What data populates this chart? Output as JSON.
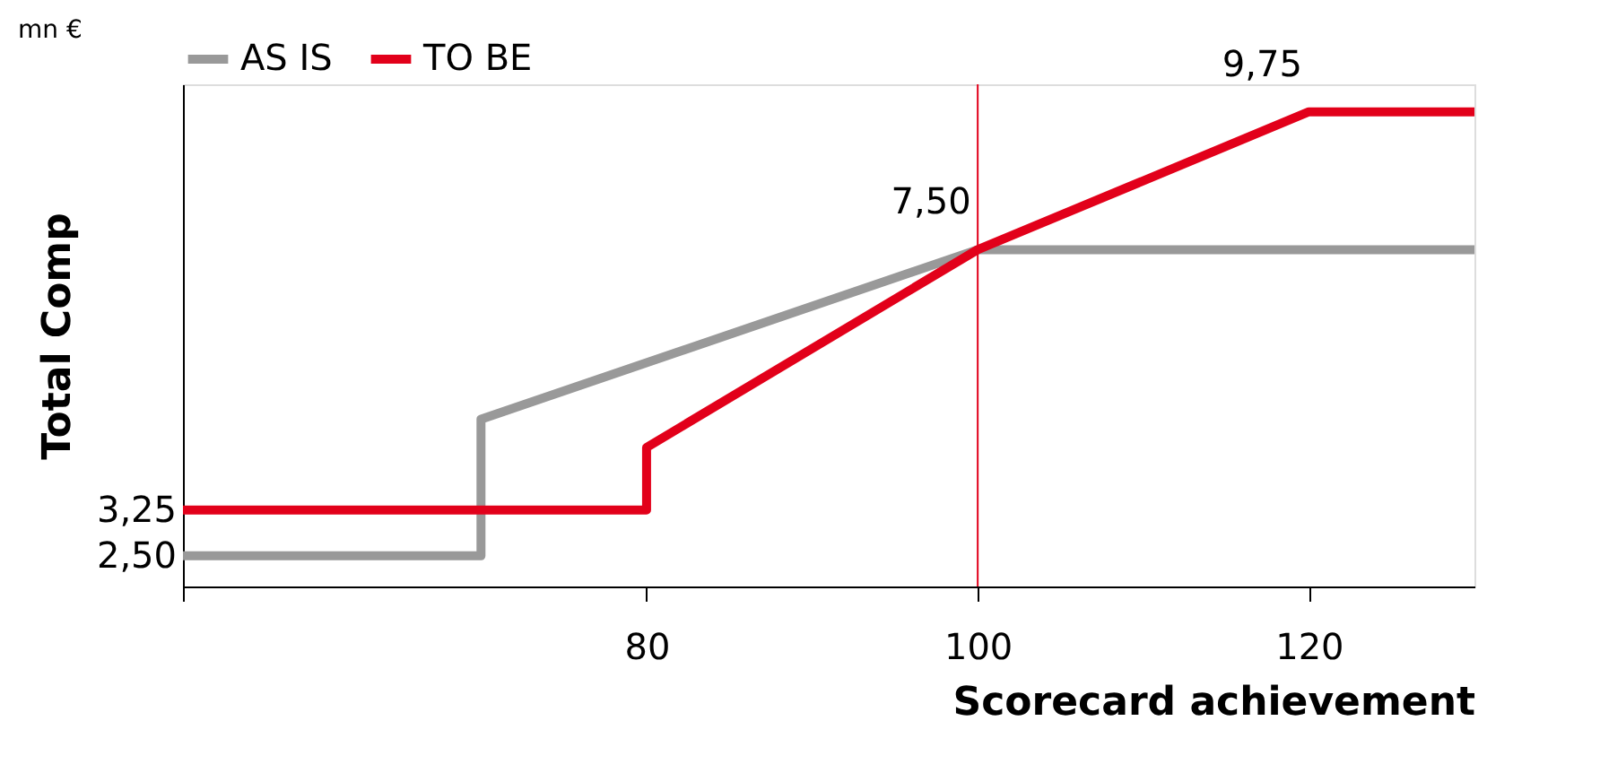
{
  "chart_data": {
    "type": "line",
    "xlabel": "Scorecard achievement",
    "ylabel": "Total Comp",
    "series": [
      {
        "name": "AS IS",
        "color": "#999999",
        "x": [
          52,
          70,
          70,
          100,
          130
        ],
        "values": [
          2.5,
          2.5,
          4.73,
          7.5,
          7.5
        ]
      },
      {
        "name": "TO BE",
        "color": "#e2001a",
        "x": [
          52,
          80,
          80,
          100,
          120,
          130
        ],
        "values": [
          3.25,
          3.25,
          4.27,
          7.5,
          9.75,
          9.75
        ]
      }
    ],
    "xlim": [
      52,
      130
    ],
    "xticks": [
      {
        "value": 52,
        "label": null
      },
      80,
      100,
      120
    ],
    "ylim": [
      2,
      10.2
    ],
    "yticks": [
      {
        "value": 2.5,
        "label": "2,50"
      },
      {
        "value": 3.25,
        "label": "3,25"
      }
    ],
    "ref_lines": [
      {
        "axis": "x",
        "value": 100,
        "color": "#e2001a"
      }
    ],
    "annotations": [
      "mn €",
      {
        "text": "7,50",
        "x": 100,
        "y": 7.5
      },
      {
        "text": "9,75",
        "x": 120,
        "y": 9.75
      }
    ],
    "legend": "top",
    "grid": false,
    "marker": "none",
    "line_style": "solid"
  }
}
